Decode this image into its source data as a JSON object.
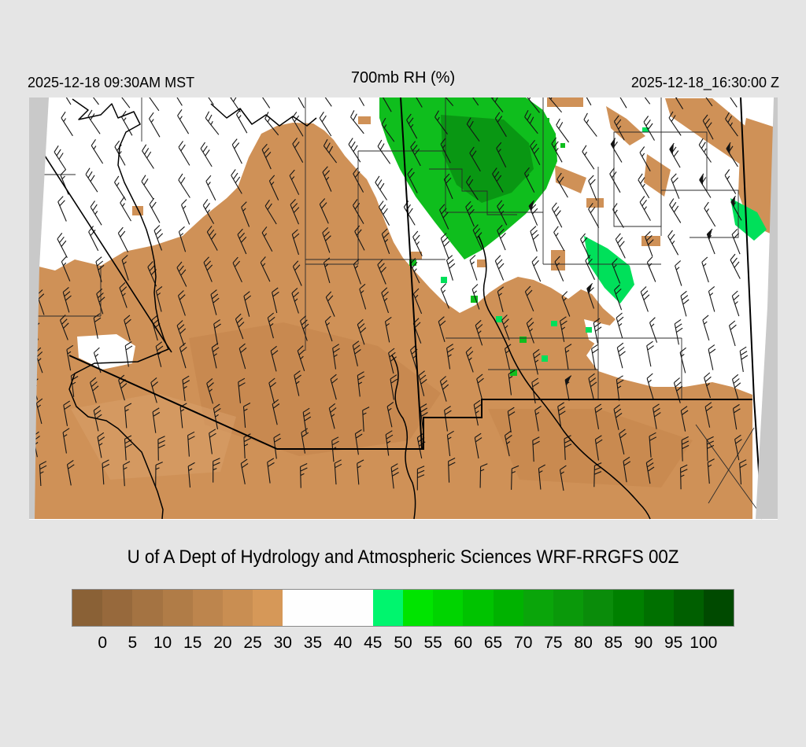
{
  "header": {
    "left_timestamp": "2025-12-18 09:30AM MST",
    "title": "700mb RH (%)",
    "right_timestamp": "2025-12-18_16:30:00 Z"
  },
  "caption": "U of A Dept of Hydrology and Atmospheric Sciences WRF-RRGFS 00Z",
  "colorbar": {
    "variable": "700mb relative humidity (%)",
    "tick_labels": [
      "0",
      "5",
      "10",
      "15",
      "20",
      "25",
      "30",
      "35",
      "40",
      "45",
      "50",
      "55",
      "60",
      "65",
      "70",
      "75",
      "80",
      "85",
      "90",
      "95",
      "100"
    ],
    "cell_colors": [
      "#8a6136",
      "#97693c",
      "#a47342",
      "#b07c47",
      "#bd854d",
      "#c98e52",
      "#d69858",
      "#fefefe",
      "#fefefe",
      "#fefefe",
      "#00f56e",
      "#00e400",
      "#00d400",
      "#00c300",
      "#00b200",
      "#0aa50a",
      "#0a990a",
      "#0a8c0a",
      "#008000",
      "#007000",
      "#005f00",
      "#004a00"
    ]
  },
  "map": {
    "description": "WRF model 700mb RH fill with wind barbs over Arizona / New Mexico",
    "wind_barbs": {
      "row_spacing": 37,
      "col_spacing": 37,
      "staff_length": 27
    }
  },
  "colors": {
    "page_bg": "#e5e5e5",
    "map_bg": "#ffffff",
    "nodata": "#c9c9c9",
    "tan": "#cf9157",
    "tan_dark": "#c2834a",
    "tan_light": "#daa26b",
    "green": "#0fbe1d",
    "green_dark": "#089012",
    "green_bright": "#00e05a",
    "line": "#2b2b2b",
    "bold": "#000000",
    "barb": "#141414",
    "text": "#000000",
    "cb_border": "#8a8a8a"
  }
}
